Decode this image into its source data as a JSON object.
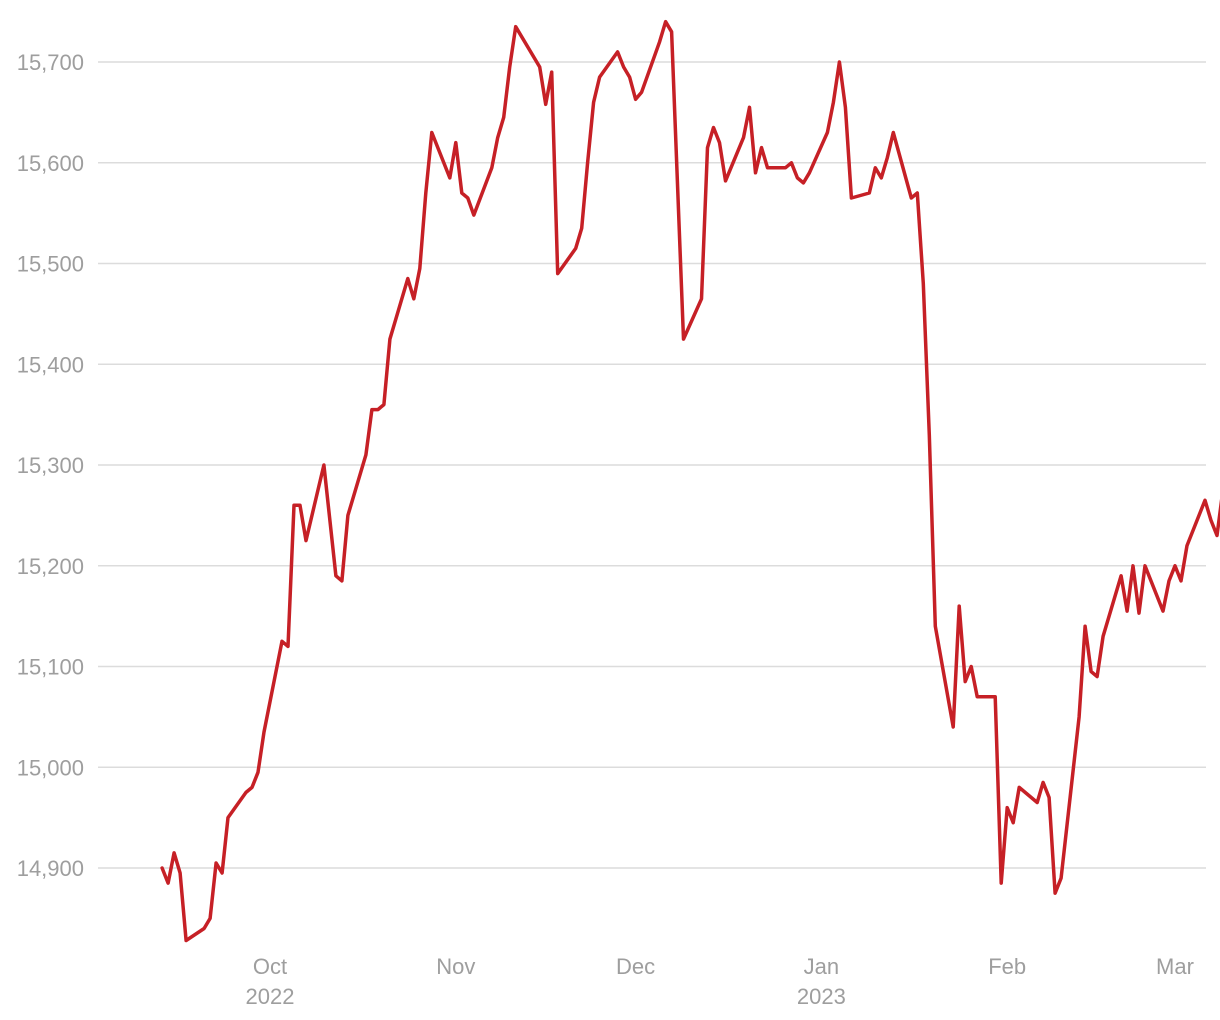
{
  "chart_data": {
    "type": "line",
    "title": "",
    "xlabel": "",
    "ylabel": "",
    "grid": true,
    "ylim": [
      14830,
      15745
    ],
    "y_ticks": [
      14900,
      15000,
      15100,
      15200,
      15300,
      15400,
      15500,
      15600,
      15700
    ],
    "y_tick_labels": [
      "14,900",
      "15,000",
      "15,100",
      "15,200",
      "15,300",
      "15,400",
      "15,500",
      "15,600",
      "15,700"
    ],
    "x_ticks": [
      {
        "date": "2022-10-01",
        "label": "Oct",
        "sublabel": "2022"
      },
      {
        "date": "2022-11-01",
        "label": "Nov",
        "sublabel": ""
      },
      {
        "date": "2022-12-01",
        "label": "Dec",
        "sublabel": ""
      },
      {
        "date": "2023-01-01",
        "label": "Jan",
        "sublabel": "2023"
      },
      {
        "date": "2023-02-01",
        "label": "Feb",
        "sublabel": ""
      },
      {
        "date": "2023-03-01",
        "label": "Mar",
        "sublabel": ""
      }
    ],
    "line_color": "#c62026",
    "series": [
      {
        "values": [
          [
            "2022-09-13",
            14900
          ],
          [
            "2022-09-14",
            14885
          ],
          [
            "2022-09-15",
            14915
          ],
          [
            "2022-09-16",
            14895
          ],
          [
            "2022-09-17",
            14828
          ],
          [
            "2022-09-20",
            14840
          ],
          [
            "2022-09-21",
            14850
          ],
          [
            "2022-09-22",
            14905
          ],
          [
            "2022-09-23",
            14895
          ],
          [
            "2022-09-24",
            14950
          ],
          [
            "2022-09-27",
            14975
          ],
          [
            "2022-09-28",
            14980
          ],
          [
            "2022-09-29",
            14995
          ],
          [
            "2022-09-30",
            15035
          ],
          [
            "2022-10-03",
            15125
          ],
          [
            "2022-10-04",
            15120
          ],
          [
            "2022-10-05",
            15260
          ],
          [
            "2022-10-06",
            15260
          ],
          [
            "2022-10-07",
            15225
          ],
          [
            "2022-10-10",
            15300
          ],
          [
            "2022-10-12",
            15190
          ],
          [
            "2022-10-13",
            15185
          ],
          [
            "2022-10-14",
            15250
          ],
          [
            "2022-10-17",
            15310
          ],
          [
            "2022-10-18",
            15355
          ],
          [
            "2022-10-19",
            15355
          ],
          [
            "2022-10-20",
            15360
          ],
          [
            "2022-10-21",
            15425
          ],
          [
            "2022-10-24",
            15485
          ],
          [
            "2022-10-25",
            15465
          ],
          [
            "2022-10-26",
            15495
          ],
          [
            "2022-10-27",
            15570
          ],
          [
            "2022-10-28",
            15630
          ],
          [
            "2022-10-31",
            15585
          ],
          [
            "2022-11-01",
            15620
          ],
          [
            "2022-11-02",
            15570
          ],
          [
            "2022-11-03",
            15565
          ],
          [
            "2022-11-04",
            15548
          ],
          [
            "2022-11-07",
            15595
          ],
          [
            "2022-11-08",
            15625
          ],
          [
            "2022-11-09",
            15645
          ],
          [
            "2022-11-10",
            15695
          ],
          [
            "2022-11-11",
            15735
          ],
          [
            "2022-11-15",
            15695
          ],
          [
            "2022-11-16",
            15658
          ],
          [
            "2022-11-17",
            15690
          ],
          [
            "2022-11-18",
            15490
          ],
          [
            "2022-11-21",
            15515
          ],
          [
            "2022-11-22",
            15535
          ],
          [
            "2022-11-23",
            15600
          ],
          [
            "2022-11-24",
            15660
          ],
          [
            "2022-11-25",
            15685
          ],
          [
            "2022-11-28",
            15710
          ],
          [
            "2022-11-29",
            15695
          ],
          [
            "2022-11-30",
            15685
          ],
          [
            "2022-12-01",
            15663
          ],
          [
            "2022-12-02",
            15670
          ],
          [
            "2022-12-05",
            15720
          ],
          [
            "2022-12-06",
            15740
          ],
          [
            "2022-12-07",
            15730
          ],
          [
            "2022-12-09",
            15425
          ],
          [
            "2022-12-12",
            15465
          ],
          [
            "2022-12-13",
            15615
          ],
          [
            "2022-12-14",
            15635
          ],
          [
            "2022-12-15",
            15620
          ],
          [
            "2022-12-16",
            15582
          ],
          [
            "2022-12-19",
            15625
          ],
          [
            "2022-12-20",
            15655
          ],
          [
            "2022-12-21",
            15590
          ],
          [
            "2022-12-22",
            15615
          ],
          [
            "2022-12-23",
            15595
          ],
          [
            "2022-12-26",
            15595
          ],
          [
            "2022-12-27",
            15600
          ],
          [
            "2022-12-28",
            15585
          ],
          [
            "2022-12-29",
            15580
          ],
          [
            "2022-12-30",
            15590
          ],
          [
            "2023-01-02",
            15630
          ],
          [
            "2023-01-03",
            15660
          ],
          [
            "2023-01-04",
            15700
          ],
          [
            "2023-01-05",
            15655
          ],
          [
            "2023-01-06",
            15565
          ],
          [
            "2023-01-09",
            15570
          ],
          [
            "2023-01-10",
            15595
          ],
          [
            "2023-01-11",
            15585
          ],
          [
            "2023-01-12",
            15605
          ],
          [
            "2023-01-13",
            15630
          ],
          [
            "2023-01-16",
            15565
          ],
          [
            "2023-01-17",
            15570
          ],
          [
            "2023-01-18",
            15480
          ],
          [
            "2023-01-19",
            15330
          ],
          [
            "2023-01-20",
            15140
          ],
          [
            "2023-01-23",
            15040
          ],
          [
            "2023-01-24",
            15160
          ],
          [
            "2023-01-25",
            15085
          ],
          [
            "2023-01-26",
            15100
          ],
          [
            "2023-01-27",
            15070
          ],
          [
            "2023-01-30",
            15070
          ],
          [
            "2023-01-31",
            14885
          ],
          [
            "2023-02-01",
            14960
          ],
          [
            "2023-02-02",
            14945
          ],
          [
            "2023-02-03",
            14980
          ],
          [
            "2023-02-06",
            14965
          ],
          [
            "2023-02-07",
            14985
          ],
          [
            "2023-02-08",
            14970
          ],
          [
            "2023-02-09",
            14875
          ],
          [
            "2023-02-10",
            14890
          ],
          [
            "2023-02-13",
            15050
          ],
          [
            "2023-02-14",
            15140
          ],
          [
            "2023-02-15",
            15095
          ],
          [
            "2023-02-16",
            15090
          ],
          [
            "2023-02-17",
            15130
          ],
          [
            "2023-02-20",
            15190
          ],
          [
            "2023-02-21",
            15155
          ],
          [
            "2023-02-22",
            15200
          ],
          [
            "2023-02-23",
            15153
          ],
          [
            "2023-02-24",
            15200
          ],
          [
            "2023-02-27",
            15155
          ],
          [
            "2023-02-28",
            15185
          ],
          [
            "2023-03-01",
            15200
          ],
          [
            "2023-03-02",
            15185
          ],
          [
            "2023-03-03",
            15220
          ],
          [
            "2023-03-06",
            15265
          ],
          [
            "2023-03-07",
            15245
          ],
          [
            "2023-03-08",
            15230
          ],
          [
            "2023-03-09",
            15275
          ],
          [
            "2023-03-10",
            15290
          ]
        ]
      }
    ]
  }
}
